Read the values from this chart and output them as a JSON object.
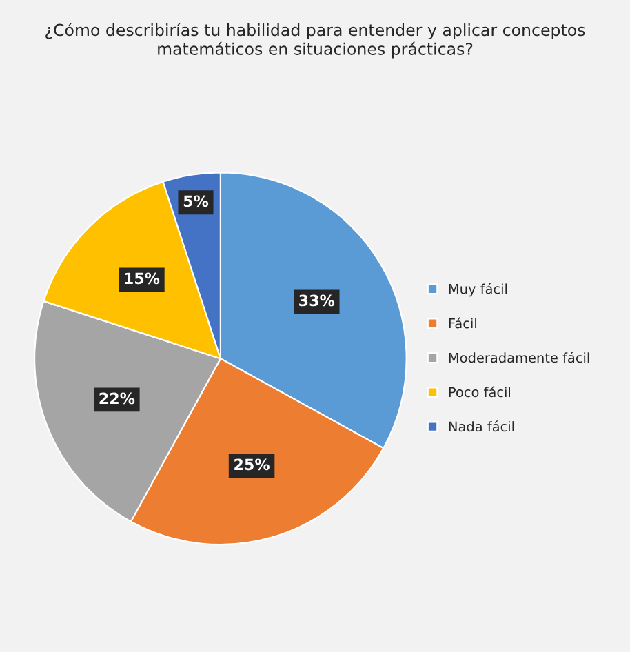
{
  "chart_data": {
    "type": "pie",
    "title": "¿Cómo describirías tu habilidad para entender y aplicar conceptos matemáticos en situaciones prácticas?",
    "categories": [
      "Muy fácil",
      "Fácil",
      "Moderadamente fácil",
      "Poco fácil",
      "Nada fácil"
    ],
    "values": [
      33,
      25,
      22,
      15,
      5
    ],
    "colors": [
      "#5b9bd5",
      "#ed7d31",
      "#a5a5a5",
      "#ffc000",
      "#4472c4"
    ],
    "value_labels": [
      "33%",
      "25%",
      "22%",
      "15%",
      "5%"
    ],
    "legend": "right"
  }
}
